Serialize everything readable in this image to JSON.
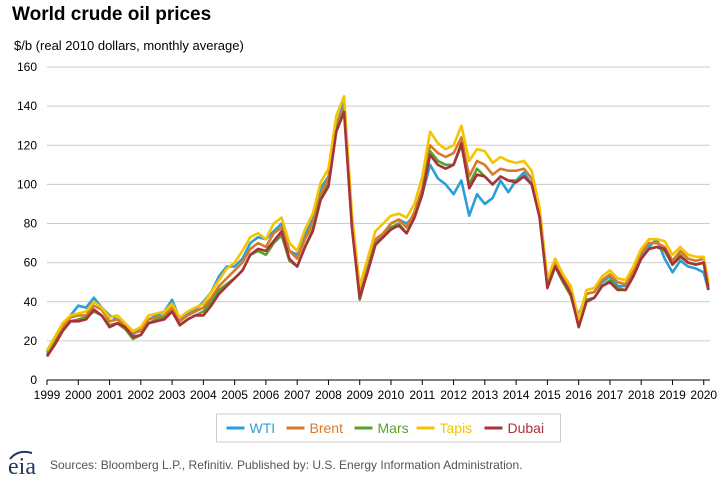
{
  "header": {
    "title": "World crude oil prices",
    "subtitle": "$/b (real 2010 dollars, monthly average)"
  },
  "footer": {
    "source": "Sources: Bloomberg L.P., Refinitiv. Published by: U.S. Energy Information Administration.",
    "logo_text": "eia"
  },
  "chart_data": {
    "type": "line",
    "title": "World crude oil prices",
    "ylabel": "$/b (real 2010 dollars, monthly average)",
    "xlabel": "",
    "ylim": [
      0,
      160
    ],
    "xlim": [
      1999,
      2020.2
    ],
    "yticks": [
      0,
      20,
      40,
      60,
      80,
      100,
      120,
      140,
      160
    ],
    "xticks": [
      "1999",
      "2000",
      "2001",
      "2002",
      "2003",
      "2004",
      "2005",
      "2006",
      "2007",
      "2008",
      "2009",
      "2010",
      "2011",
      "2012",
      "2013",
      "2014",
      "2015",
      "2016",
      "2017",
      "2018",
      "2019",
      "2020"
    ],
    "grid": true,
    "legend_position": "bottom",
    "x": [
      1999.0,
      1999.25,
      1999.5,
      1999.75,
      2000.0,
      2000.25,
      2000.5,
      2000.75,
      2001.0,
      2001.25,
      2001.5,
      2001.75,
      2002.0,
      2002.25,
      2002.5,
      2002.75,
      2003.0,
      2003.25,
      2003.5,
      2003.75,
      2004.0,
      2004.25,
      2004.5,
      2004.75,
      2005.0,
      2005.25,
      2005.5,
      2005.75,
      2006.0,
      2006.25,
      2006.5,
      2006.75,
      2007.0,
      2007.25,
      2007.5,
      2007.75,
      2008.0,
      2008.25,
      2008.5,
      2008.75,
      2009.0,
      2009.25,
      2009.5,
      2009.75,
      2010.0,
      2010.25,
      2010.5,
      2010.75,
      2011.0,
      2011.25,
      2011.5,
      2011.75,
      2012.0,
      2012.25,
      2012.5,
      2012.75,
      2013.0,
      2013.25,
      2013.5,
      2013.75,
      2014.0,
      2014.25,
      2014.5,
      2014.75,
      2015.0,
      2015.25,
      2015.5,
      2015.75,
      2016.0,
      2016.25,
      2016.5,
      2016.75,
      2017.0,
      2017.25,
      2017.5,
      2017.75,
      2018.0,
      2018.25,
      2018.5,
      2018.75,
      2019.0,
      2019.25,
      2019.5,
      2019.75,
      2020.0,
      2020.15
    ],
    "series": [
      {
        "name": "WTI",
        "color": "#2a9fd6",
        "values": [
          15,
          21,
          27,
          33,
          38,
          37,
          42,
          37,
          33,
          31,
          27,
          23,
          27,
          31,
          33,
          35,
          41,
          31,
          34,
          36,
          40,
          45,
          53,
          58,
          58,
          62,
          70,
          73,
          72,
          76,
          80,
          66,
          64,
          74,
          82,
          98,
          104,
          130,
          142,
          82,
          46,
          58,
          70,
          75,
          80,
          82,
          80,
          84,
          95,
          110,
          103,
          100,
          95,
          102,
          84,
          95,
          90,
          93,
          102,
          96,
          102,
          106,
          100,
          84,
          48,
          58,
          50,
          44,
          33,
          44,
          45,
          50,
          53,
          48,
          48,
          54,
          63,
          68,
          72,
          62,
          55,
          61,
          58,
          57,
          55,
          46
        ]
      },
      {
        "name": "Brent",
        "color": "#d97a2b",
        "values": [
          14,
          20,
          27,
          32,
          33,
          33,
          38,
          36,
          30,
          31,
          28,
          24,
          25,
          31,
          32,
          33,
          37,
          30,
          33,
          35,
          37,
          42,
          48,
          52,
          56,
          60,
          67,
          70,
          68,
          75,
          78,
          66,
          62,
          72,
          80,
          95,
          103,
          130,
          140,
          80,
          45,
          57,
          72,
          75,
          80,
          82,
          78,
          86,
          98,
          120,
          116,
          114,
          116,
          124,
          104,
          112,
          110,
          105,
          108,
          107,
          107,
          108,
          103,
          86,
          50,
          60,
          52,
          46,
          30,
          44,
          45,
          51,
          54,
          50,
          49,
          56,
          65,
          70,
          70,
          68,
          61,
          66,
          62,
          61,
          62,
          48
        ]
      },
      {
        "name": "Mars",
        "color": "#5aa02c",
        "values": [
          13,
          19,
          25,
          30,
          31,
          32,
          35,
          33,
          28,
          29,
          26,
          21,
          23,
          29,
          31,
          32,
          35,
          28,
          31,
          33,
          35,
          40,
          46,
          49,
          52,
          56,
          64,
          66,
          64,
          70,
          74,
          61,
          58,
          68,
          77,
          93,
          100,
          128,
          138,
          79,
          41,
          56,
          70,
          73,
          78,
          80,
          75,
          83,
          95,
          117,
          112,
          110,
          110,
          120,
          100,
          108,
          104,
          100,
          104,
          102,
          102,
          104,
          100,
          84,
          48,
          58,
          50,
          43,
          28,
          41,
          42,
          48,
          51,
          47,
          46,
          53,
          62,
          67,
          68,
          66,
          59,
          64,
          60,
          59,
          60,
          46
        ]
      },
      {
        "name": "Tapis",
        "color": "#f5c400",
        "values": [
          15,
          22,
          29,
          33,
          34,
          35,
          40,
          37,
          32,
          33,
          29,
          25,
          27,
          33,
          34,
          35,
          39,
          32,
          35,
          37,
          39,
          45,
          51,
          57,
          60,
          66,
          73,
          75,
          72,
          80,
          83,
          70,
          66,
          77,
          85,
          101,
          108,
          135,
          145,
          85,
          48,
          62,
          76,
          80,
          84,
          85,
          83,
          90,
          104,
          127,
          121,
          118,
          120,
          130,
          112,
          118,
          117,
          111,
          114,
          112,
          111,
          112,
          107,
          88,
          52,
          62,
          54,
          48,
          31,
          46,
          47,
          53,
          56,
          52,
          51,
          58,
          67,
          72,
          72,
          71,
          64,
          68,
          64,
          63,
          63,
          50
        ]
      },
      {
        "name": "Dubai",
        "color": "#a8323a",
        "values": [
          12,
          18,
          25,
          30,
          30,
          31,
          36,
          33,
          27,
          29,
          27,
          22,
          23,
          29,
          30,
          31,
          35,
          28,
          31,
          33,
          33,
          38,
          44,
          48,
          52,
          56,
          64,
          67,
          66,
          71,
          76,
          62,
          58,
          68,
          76,
          92,
          99,
          127,
          137,
          78,
          42,
          55,
          69,
          73,
          77,
          79,
          75,
          83,
          95,
          115,
          110,
          108,
          110,
          121,
          98,
          105,
          104,
          100,
          104,
          102,
          101,
          104,
          100,
          83,
          47,
          58,
          51,
          44,
          27,
          40,
          42,
          48,
          50,
          46,
          46,
          53,
          62,
          67,
          68,
          67,
          59,
          63,
          60,
          59,
          60,
          46
        ]
      }
    ]
  }
}
